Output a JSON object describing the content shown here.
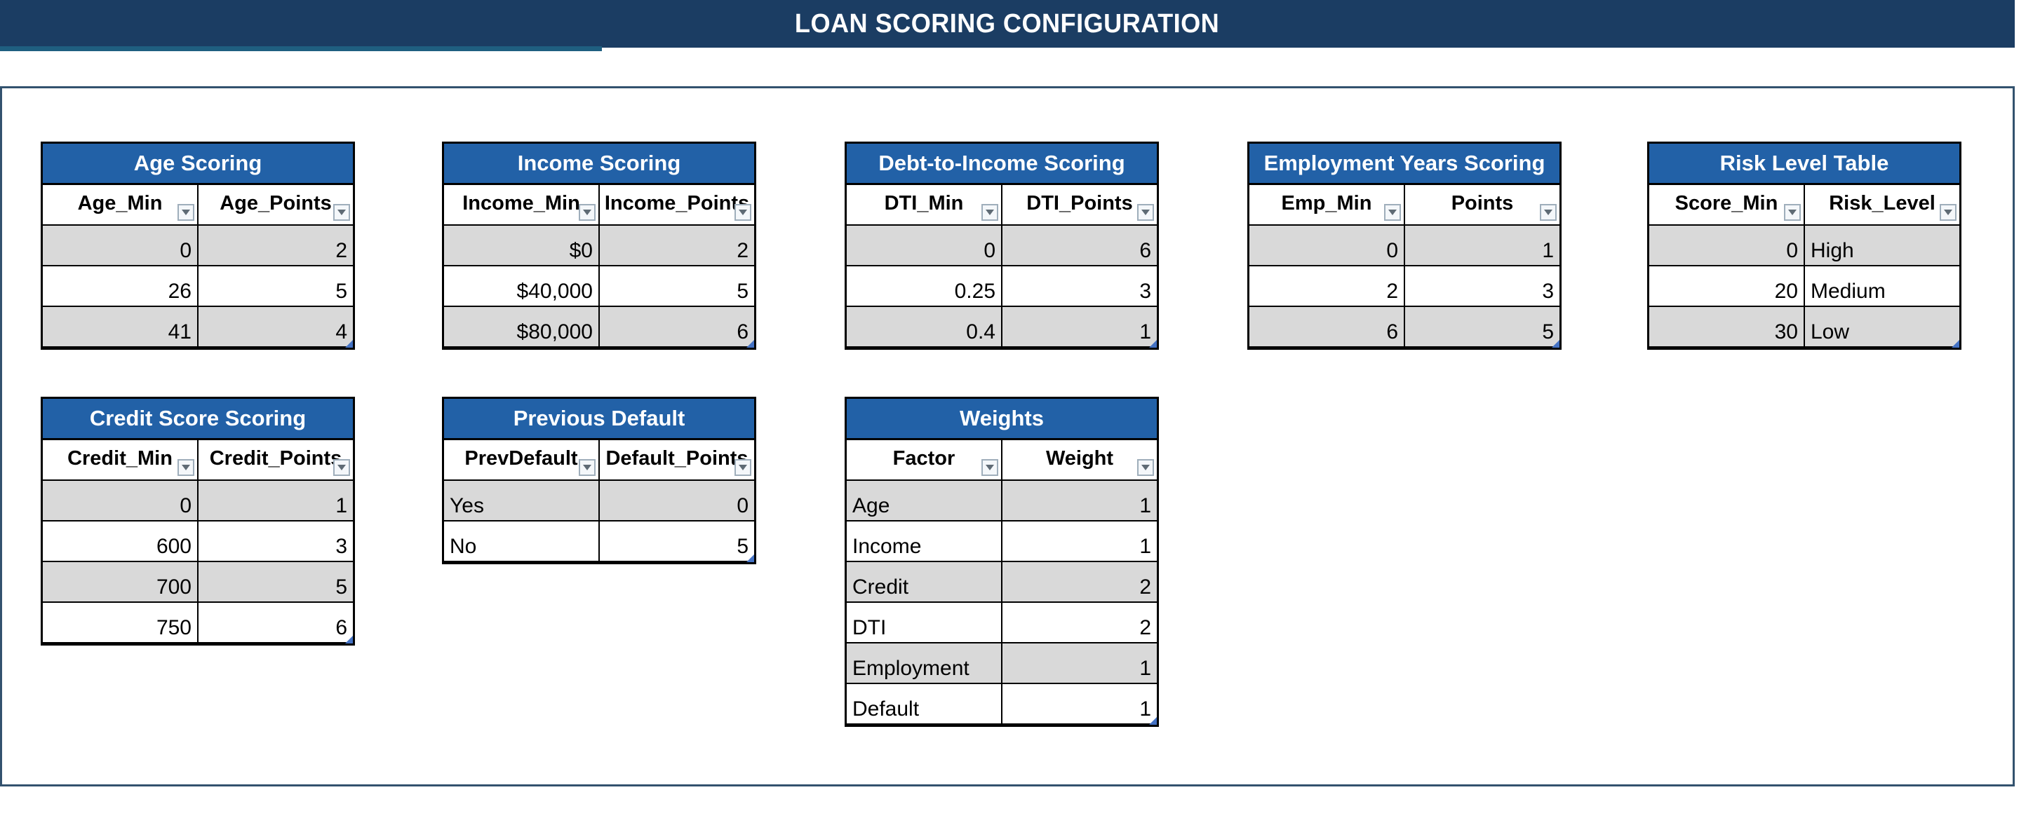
{
  "header": {
    "title": "LOAN SCORING CONFIGURATION"
  },
  "colors": {
    "top_bar": "#1B3D63",
    "accent_underline": "#1F5F80",
    "panel_border": "#33526E",
    "table_header_bg": "#2261A7",
    "row_alt": "#D9D9D9",
    "resize_handle": "#4472C4"
  },
  "icons": {
    "column_filter": "chevron-down-icon"
  },
  "tables": [
    {
      "id": "age-scoring",
      "title": "Age Scoring",
      "columns": [
        "Age_Min",
        "Age_Points"
      ],
      "col_align": [
        "right",
        "right"
      ],
      "rows": [
        [
          "0",
          "2"
        ],
        [
          "26",
          "5"
        ],
        [
          "41",
          "4"
        ]
      ]
    },
    {
      "id": "income-scoring",
      "title": "Income Scoring",
      "columns": [
        "Income_Min",
        "Income_Points"
      ],
      "col_align": [
        "right",
        "right"
      ],
      "rows": [
        [
          "$0",
          "2"
        ],
        [
          "$40,000",
          "5"
        ],
        [
          "$80,000",
          "6"
        ]
      ]
    },
    {
      "id": "dti-scoring",
      "title": "Debt-to-Income Scoring",
      "columns": [
        "DTI_Min",
        "DTI_Points"
      ],
      "col_align": [
        "right",
        "right"
      ],
      "rows": [
        [
          "0",
          "6"
        ],
        [
          "0.25",
          "3"
        ],
        [
          "0.4",
          "1"
        ]
      ]
    },
    {
      "id": "employment-scoring",
      "title": "Employment Years Scoring",
      "columns": [
        "Emp_Min",
        "Points"
      ],
      "col_align": [
        "right",
        "right"
      ],
      "rows": [
        [
          "0",
          "1"
        ],
        [
          "2",
          "3"
        ],
        [
          "6",
          "5"
        ]
      ]
    },
    {
      "id": "risk-level",
      "title": "Risk Level Table",
      "columns": [
        "Score_Min",
        "Risk_Level"
      ],
      "col_align": [
        "right",
        "left"
      ],
      "rows": [
        [
          "0",
          "High"
        ],
        [
          "20",
          "Medium"
        ],
        [
          "30",
          "Low"
        ]
      ]
    },
    {
      "id": "credit-scoring",
      "title": "Credit Score Scoring",
      "columns": [
        "Credit_Min",
        "Credit_Points"
      ],
      "col_align": [
        "right",
        "right"
      ],
      "rows": [
        [
          "0",
          "1"
        ],
        [
          "600",
          "3"
        ],
        [
          "700",
          "5"
        ],
        [
          "750",
          "6"
        ]
      ]
    },
    {
      "id": "previous-default",
      "title": "Previous Default",
      "columns": [
        "PrevDefault",
        "Default_Points"
      ],
      "col_align": [
        "left",
        "right"
      ],
      "rows": [
        [
          "Yes",
          "0"
        ],
        [
          "No",
          "5"
        ]
      ]
    },
    {
      "id": "weights",
      "title": "Weights",
      "columns": [
        "Factor",
        "Weight"
      ],
      "col_align": [
        "left",
        "right"
      ],
      "rows": [
        [
          "Age",
          "1"
        ],
        [
          "Income",
          "1"
        ],
        [
          "Credit",
          "2"
        ],
        [
          "DTI",
          "2"
        ],
        [
          "Employment",
          "1"
        ],
        [
          "Default",
          "1"
        ]
      ]
    }
  ]
}
